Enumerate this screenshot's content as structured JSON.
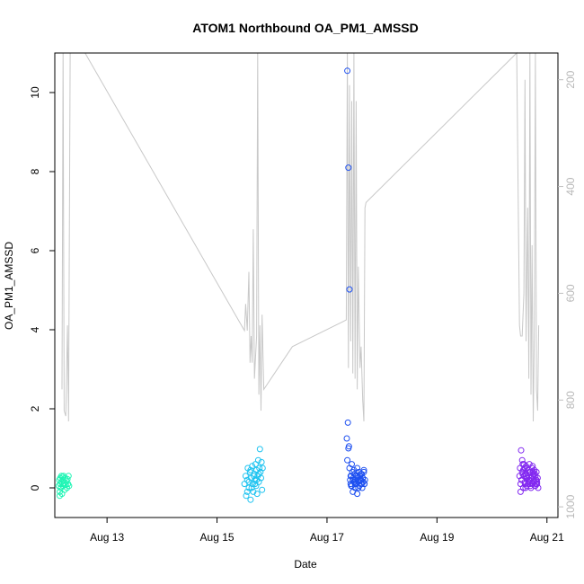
{
  "chart_data": {
    "type": "scatter",
    "title": "ATOM1 Northbound OA_PM1_AMSSD",
    "xlabel": "Date",
    "ylabel": "OA_PM1_AMSSD",
    "x_unit": "days in August",
    "xlim": [
      12.05,
      21.2
    ],
    "ylim": [
      -0.75,
      11
    ],
    "x_ticks": [
      13,
      15,
      17,
      19,
      21
    ],
    "x_tick_labels": [
      "Aug 13",
      "Aug 15",
      "Aug 17",
      "Aug 19",
      "Aug 21"
    ],
    "y_ticks": [
      0,
      2,
      4,
      6,
      8,
      10
    ],
    "y_tick_labels": [
      "0",
      "2",
      "4",
      "6",
      "8",
      "10"
    ],
    "secondary_axis": {
      "side": "right",
      "reversed": true,
      "ylim": [
        1020,
        150
      ],
      "ticks": [
        200,
        400,
        600,
        800,
        1000
      ],
      "tick_labels": [
        "200",
        "400",
        "600",
        "800",
        "1000"
      ],
      "color": "#bebebe"
    },
    "grid": false,
    "line_color": "#c8c8c8",
    "point_colors": [
      "#1ef5b4",
      "#1ec3f0",
      "#1e50f0",
      "#8228f0"
    ],
    "secondary_line": [
      [
        12.18,
        780
      ],
      [
        12.2,
        150
      ],
      [
        12.22,
        820
      ],
      [
        12.25,
        830
      ],
      [
        12.28,
        660
      ],
      [
        12.3,
        840
      ],
      [
        12.33,
        150
      ],
      [
        12.36,
        150
      ],
      [
        12.6,
        150
      ],
      [
        15.5,
        670
      ],
      [
        15.52,
        620
      ],
      [
        15.55,
        670
      ],
      [
        15.58,
        560
      ],
      [
        15.6,
        730
      ],
      [
        15.62,
        680
      ],
      [
        15.64,
        730
      ],
      [
        15.66,
        480
      ],
      [
        15.68,
        760
      ],
      [
        15.7,
        720
      ],
      [
        15.72,
        680
      ],
      [
        15.74,
        150
      ],
      [
        15.76,
        790
      ],
      [
        15.78,
        660
      ],
      [
        15.8,
        820
      ],
      [
        15.82,
        640
      ],
      [
        15.85,
        780
      ],
      [
        16.37,
        700
      ],
      [
        17.35,
        650
      ],
      [
        17.37,
        150
      ],
      [
        17.39,
        740
      ],
      [
        17.41,
        210
      ],
      [
        17.43,
        690
      ],
      [
        17.45,
        240
      ],
      [
        17.47,
        750
      ],
      [
        17.49,
        150
      ],
      [
        17.51,
        760
      ],
      [
        17.53,
        240
      ],
      [
        17.55,
        780
      ],
      [
        17.57,
        550
      ],
      [
        17.6,
        740
      ],
      [
        17.62,
        700
      ],
      [
        17.65,
        800
      ],
      [
        17.67,
        840
      ],
      [
        17.69,
        440
      ],
      [
        17.71,
        430
      ],
      [
        20.45,
        150
      ],
      [
        20.5,
        660
      ],
      [
        20.52,
        680
      ],
      [
        20.55,
        680
      ],
      [
        20.58,
        600
      ],
      [
        20.6,
        200
      ],
      [
        20.62,
        690
      ],
      [
        20.65,
        440
      ],
      [
        20.67,
        760
      ],
      [
        20.69,
        150
      ],
      [
        20.71,
        790
      ],
      [
        20.73,
        510
      ],
      [
        20.75,
        840
      ],
      [
        20.77,
        680
      ],
      [
        20.79,
        150
      ],
      [
        20.81,
        780
      ],
      [
        20.83,
        820
      ],
      [
        20.85,
        660
      ]
    ],
    "series": [
      {
        "x": [
          12.12,
          12.13,
          12.14,
          12.15,
          12.15,
          12.16,
          12.17,
          12.17,
          12.18,
          12.19,
          12.2,
          12.2,
          12.21,
          12.22,
          12.23,
          12.24,
          12.25,
          12.26,
          12.27,
          12.28,
          12.29,
          12.3,
          12.31,
          12.14,
          12.19
        ],
        "y": [
          0.05,
          0.2,
          -0.1,
          0.1,
          0.25,
          0.0,
          0.15,
          0.3,
          -0.15,
          0.1,
          0.2,
          0.05,
          0.3,
          0.12,
          -0.05,
          0.25,
          0.08,
          0.18,
          0.0,
          0.22,
          0.1,
          0.3,
          0.05,
          -0.2,
          0.28
        ]
      },
      {
        "x": [
          15.5,
          15.52,
          15.53,
          15.55,
          15.56,
          15.58,
          15.6,
          15.61,
          15.62,
          15.64,
          15.65,
          15.66,
          15.68,
          15.69,
          15.7,
          15.71,
          15.72,
          15.73,
          15.74,
          15.75,
          15.76,
          15.77,
          15.78,
          15.79,
          15.8,
          15.81,
          15.82,
          15.83,
          15.58,
          15.63,
          15.67,
          15.72,
          15.55,
          15.61,
          15.69,
          15.76
        ],
        "y": [
          0.1,
          0.3,
          -0.2,
          0.2,
          0.5,
          0.0,
          0.4,
          -0.3,
          0.25,
          0.55,
          0.1,
          -0.1,
          0.35,
          0.2,
          0.6,
          0.05,
          0.45,
          -0.15,
          0.3,
          0.7,
          0.15,
          0.5,
          0.98,
          0.4,
          0.25,
          0.65,
          -0.05,
          0.5,
          0.15,
          0.0,
          0.3,
          0.2,
          -0.1,
          0.45,
          0.1,
          0.35
        ]
      },
      {
        "x": [
          17.37,
          17.39,
          17.41,
          17.38,
          17.4,
          17.36,
          17.42,
          17.43,
          17.44,
          17.45,
          17.46,
          17.47,
          17.48,
          17.49,
          17.5,
          17.51,
          17.52,
          17.53,
          17.54,
          17.55,
          17.56,
          17.57,
          17.58,
          17.59,
          17.6,
          17.61,
          17.62,
          17.63,
          17.64,
          17.65,
          17.66,
          17.67,
          17.68,
          17.69,
          17.39,
          17.41,
          17.43,
          17.45,
          17.47,
          17.49,
          17.51,
          17.53,
          17.55,
          17.57,
          17.59,
          17.61,
          17.63,
          17.65,
          17.67,
          17.37,
          17.44,
          17.5,
          17.56,
          17.62,
          17.68
        ],
        "y": [
          10.55,
          8.1,
          5.02,
          1.65,
          1.05,
          1.25,
          0.2,
          0.1,
          0.3,
          0.05,
          0.4,
          -0.1,
          0.25,
          0.15,
          0.35,
          0.0,
          0.2,
          0.3,
          0.1,
          -0.15,
          0.25,
          0.15,
          0.4,
          0.05,
          0.3,
          0.2,
          0.1,
          0.35,
          0.0,
          0.25,
          0.15,
          0.4,
          0.1,
          0.2,
          1.0,
          0.5,
          0.3,
          0.6,
          0.2,
          0.45,
          0.1,
          0.3,
          0.5,
          0.0,
          0.2,
          0.35,
          0.1,
          0.25,
          0.45,
          0.7,
          0.05,
          0.15,
          0.3,
          0.2,
          0.1
        ]
      },
      {
        "x": [
          20.5,
          20.51,
          20.52,
          20.53,
          20.54,
          20.55,
          20.56,
          20.57,
          20.58,
          20.59,
          20.6,
          20.61,
          20.62,
          20.63,
          20.64,
          20.65,
          20.66,
          20.67,
          20.68,
          20.69,
          20.7,
          20.71,
          20.72,
          20.73,
          20.74,
          20.75,
          20.76,
          20.77,
          20.78,
          20.79,
          20.8,
          20.81,
          20.82,
          20.83,
          20.84,
          20.52,
          20.54,
          20.56,
          20.58,
          20.6,
          20.62,
          20.64,
          20.66,
          20.68,
          20.7,
          20.72,
          20.74,
          20.76,
          20.78,
          20.8,
          20.82,
          20.55,
          20.61,
          20.67,
          20.73,
          20.79,
          20.57,
          20.63,
          20.69,
          20.75,
          20.81
        ],
        "y": [
          0.3,
          0.5,
          0.1,
          0.95,
          0.2,
          0.4,
          0.6,
          0.0,
          0.3,
          0.5,
          0.15,
          0.35,
          0.55,
          0.05,
          0.25,
          0.45,
          0.1,
          0.3,
          0.6,
          0.2,
          0.4,
          0.0,
          0.25,
          0.5,
          0.1,
          0.35,
          0.15,
          0.45,
          0.05,
          0.3,
          0.2,
          0.4,
          0.1,
          0.25,
          0.0,
          -0.1,
          0.2,
          0.35,
          0.6,
          0.1,
          0.3,
          0.5,
          0.15,
          0.4,
          0.05,
          0.25,
          0.55,
          0.2,
          0.35,
          0.1,
          0.15,
          0.7,
          0.0,
          0.2,
          0.3,
          0.05,
          0.45,
          0.25,
          0.1,
          0.4,
          0.2
        ]
      }
    ]
  }
}
